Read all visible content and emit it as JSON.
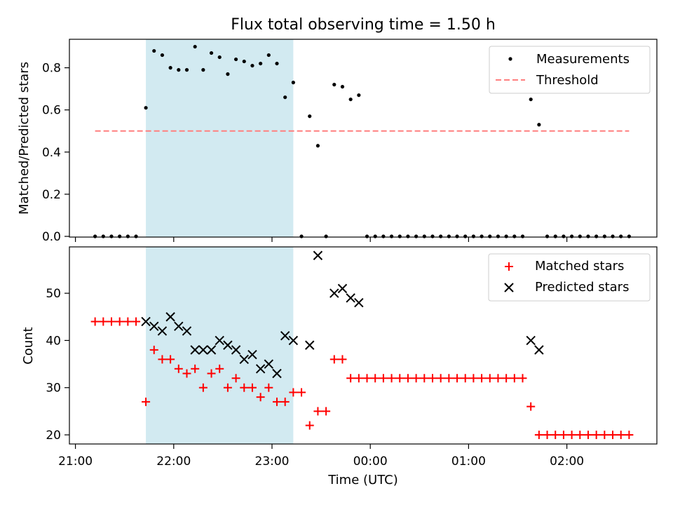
{
  "title": "Flux total observing time = 1.50 h",
  "colors": {
    "shade": "#add8e6",
    "threshold": "#ff7f7f",
    "measurement": "#000000",
    "matched": "#ff0000",
    "predicted": "#000000"
  },
  "chart_data": [
    {
      "type": "scatter",
      "ylabel": "Matched/Predicted stars",
      "xlabel": "",
      "ylim": [
        0,
        0.94
      ],
      "xlim": [
        "20:58",
        "02:54"
      ],
      "yticks": [
        "0.0",
        "0.2",
        "0.4",
        "0.6",
        "0.8"
      ],
      "shaded_span": [
        "21:43",
        "23:13"
      ],
      "legend_position": "top-right",
      "grid": false,
      "threshold": {
        "name": "Threshold",
        "y": 0.5,
        "x_range": [
          "21:12",
          "02:38"
        ]
      },
      "series": [
        {
          "name": "Measurements",
          "points": [
            [
              "21:12",
              0
            ],
            [
              "21:17",
              0
            ],
            [
              "21:22",
              0
            ],
            [
              "21:27",
              0
            ],
            [
              "21:32",
              0
            ],
            [
              "21:37",
              0
            ],
            [
              "21:43",
              0.61
            ],
            [
              "21:48",
              0.88
            ],
            [
              "21:53",
              0.86
            ],
            [
              "21:58",
              0.8
            ],
            [
              "22:03",
              0.79
            ],
            [
              "22:08",
              0.79
            ],
            [
              "22:13",
              0.9
            ],
            [
              "22:18",
              0.79
            ],
            [
              "22:23",
              0.87
            ],
            [
              "22:28",
              0.85
            ],
            [
              "22:33",
              0.77
            ],
            [
              "22:38",
              0.84
            ],
            [
              "22:43",
              0.83
            ],
            [
              "22:48",
              0.81
            ],
            [
              "22:53",
              0.82
            ],
            [
              "22:58",
              0.86
            ],
            [
              "23:03",
              0.82
            ],
            [
              "23:08",
              0.66
            ],
            [
              "23:13",
              0.73
            ],
            [
              "23:18",
              0
            ],
            [
              "23:23",
              0.57
            ],
            [
              "23:28",
              0.43
            ],
            [
              "23:33",
              0
            ],
            [
              "23:38",
              0.72
            ],
            [
              "23:43",
              0.71
            ],
            [
              "23:48",
              0.65
            ],
            [
              "23:53",
              0.67
            ],
            [
              "23:58",
              0
            ],
            [
              "00:03",
              0
            ],
            [
              "00:08",
              0
            ],
            [
              "00:13",
              0
            ],
            [
              "00:18",
              0
            ],
            [
              "00:23",
              0
            ],
            [
              "00:28",
              0
            ],
            [
              "00:33",
              0
            ],
            [
              "00:38",
              0
            ],
            [
              "00:43",
              0
            ],
            [
              "00:48",
              0
            ],
            [
              "00:53",
              0
            ],
            [
              "00:58",
              0
            ],
            [
              "01:03",
              0
            ],
            [
              "01:08",
              0
            ],
            [
              "01:13",
              0
            ],
            [
              "01:18",
              0
            ],
            [
              "01:23",
              0
            ],
            [
              "01:28",
              0
            ],
            [
              "01:33",
              0
            ],
            [
              "01:38",
              0.65
            ],
            [
              "01:43",
              0.53
            ],
            [
              "01:48",
              0
            ],
            [
              "01:53",
              0
            ],
            [
              "01:58",
              0
            ],
            [
              "02:03",
              0
            ],
            [
              "02:08",
              0
            ],
            [
              "02:13",
              0
            ],
            [
              "02:18",
              0
            ],
            [
              "02:23",
              0
            ],
            [
              "02:28",
              0
            ],
            [
              "02:33",
              0
            ],
            [
              "02:38",
              0
            ]
          ]
        }
      ]
    },
    {
      "type": "scatter",
      "ylabel": "Count",
      "xlabel": "Time (UTC)",
      "ylim": [
        18,
        60
      ],
      "xlim": [
        "20:58",
        "02:54"
      ],
      "yticks": [
        "20",
        "30",
        "40",
        "50"
      ],
      "xticks": [
        "21:00",
        "22:00",
        "23:00",
        "00:00",
        "01:00",
        "02:00"
      ],
      "shaded_span": [
        "21:43",
        "23:13"
      ],
      "legend_position": "top-right",
      "grid": false,
      "series": [
        {
          "name": "Matched stars",
          "marker": "plus",
          "points": [
            [
              "21:12",
              44
            ],
            [
              "21:17",
              44
            ],
            [
              "21:22",
              44
            ],
            [
              "21:27",
              44
            ],
            [
              "21:32",
              44
            ],
            [
              "21:37",
              44
            ],
            [
              "21:43",
              27
            ],
            [
              "21:48",
              38
            ],
            [
              "21:53",
              36
            ],
            [
              "21:58",
              36
            ],
            [
              "22:03",
              34
            ],
            [
              "22:08",
              33
            ],
            [
              "22:13",
              34
            ],
            [
              "22:18",
              30
            ],
            [
              "22:23",
              33
            ],
            [
              "22:28",
              34
            ],
            [
              "22:33",
              30
            ],
            [
              "22:38",
              32
            ],
            [
              "22:43",
              30
            ],
            [
              "22:48",
              30
            ],
            [
              "22:53",
              28
            ],
            [
              "22:58",
              30
            ],
            [
              "23:03",
              27
            ],
            [
              "23:08",
              27
            ],
            [
              "23:13",
              29
            ],
            [
              "23:18",
              29
            ],
            [
              "23:23",
              22
            ],
            [
              "23:28",
              25
            ],
            [
              "23:33",
              25
            ],
            [
              "23:38",
              36
            ],
            [
              "23:43",
              36
            ],
            [
              "23:48",
              32
            ],
            [
              "23:53",
              32
            ],
            [
              "23:58",
              32
            ],
            [
              "00:03",
              32
            ],
            [
              "00:08",
              32
            ],
            [
              "00:13",
              32
            ],
            [
              "00:18",
              32
            ],
            [
              "00:23",
              32
            ],
            [
              "00:28",
              32
            ],
            [
              "00:33",
              32
            ],
            [
              "00:38",
              32
            ],
            [
              "00:43",
              32
            ],
            [
              "00:48",
              32
            ],
            [
              "00:53",
              32
            ],
            [
              "00:58",
              32
            ],
            [
              "01:03",
              32
            ],
            [
              "01:08",
              32
            ],
            [
              "01:13",
              32
            ],
            [
              "01:18",
              32
            ],
            [
              "01:23",
              32
            ],
            [
              "01:28",
              32
            ],
            [
              "01:33",
              32
            ],
            [
              "01:38",
              26
            ],
            [
              "01:43",
              20
            ],
            [
              "01:48",
              20
            ],
            [
              "01:53",
              20
            ],
            [
              "01:58",
              20
            ],
            [
              "02:03",
              20
            ],
            [
              "02:08",
              20
            ],
            [
              "02:13",
              20
            ],
            [
              "02:18",
              20
            ],
            [
              "02:23",
              20
            ],
            [
              "02:28",
              20
            ],
            [
              "02:33",
              20
            ],
            [
              "02:38",
              20
            ]
          ]
        },
        {
          "name": "Predicted stars",
          "marker": "x",
          "points": [
            [
              "21:43",
              44
            ],
            [
              "21:48",
              43
            ],
            [
              "21:53",
              42
            ],
            [
              "21:58",
              45
            ],
            [
              "22:03",
              43
            ],
            [
              "22:08",
              42
            ],
            [
              "22:13",
              38
            ],
            [
              "22:18",
              38
            ],
            [
              "22:23",
              38
            ],
            [
              "22:28",
              40
            ],
            [
              "22:33",
              39
            ],
            [
              "22:38",
              38
            ],
            [
              "22:43",
              36
            ],
            [
              "22:48",
              37
            ],
            [
              "22:53",
              34
            ],
            [
              "22:58",
              35
            ],
            [
              "23:03",
              33
            ],
            [
              "23:08",
              41
            ],
            [
              "23:13",
              40
            ],
            [
              "23:23",
              39
            ],
            [
              "23:28",
              58
            ],
            [
              "23:38",
              50
            ],
            [
              "23:43",
              51
            ],
            [
              "23:48",
              49
            ],
            [
              "23:53",
              48
            ],
            [
              "01:38",
              40
            ],
            [
              "01:43",
              38
            ]
          ]
        }
      ]
    }
  ]
}
